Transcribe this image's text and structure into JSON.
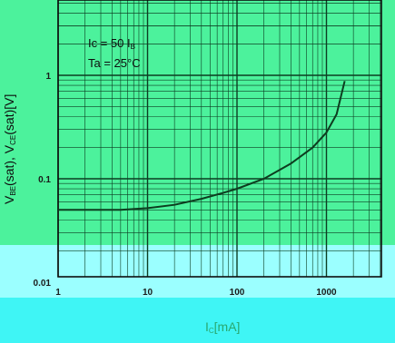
{
  "chart_data": {
    "type": "line",
    "x_scale": "log",
    "y_scale": "log",
    "xlim": [
      1,
      2000
    ],
    "ylim": [
      0.01,
      5
    ],
    "x_ticks": [
      "1",
      "10",
      "100",
      "1000"
    ],
    "y_ticks": [
      "0.01",
      "0.1",
      "1"
    ],
    "grid": true,
    "xlabel": {
      "main": "I",
      "sub": "C",
      "unit": "[mA]"
    },
    "ylabel": {
      "a": "V",
      "a_sub": "BE",
      "b": "(sat), V",
      "b_sub": "CE",
      "c": "(sat)[V]"
    },
    "annotations": [
      {
        "text": "Ic = 50 I",
        "sub": "B"
      },
      {
        "text": "Ta = 25°C"
      }
    ],
    "series": [
      {
        "x": [
          1,
          5,
          10,
          20,
          40,
          70,
          100,
          200,
          400,
          700,
          1000,
          1300,
          1600
        ],
        "y": [
          0.05,
          0.05,
          0.052,
          0.056,
          0.064,
          0.073,
          0.08,
          0.1,
          0.14,
          0.2,
          0.28,
          0.42,
          0.88
        ]
      }
    ]
  }
}
